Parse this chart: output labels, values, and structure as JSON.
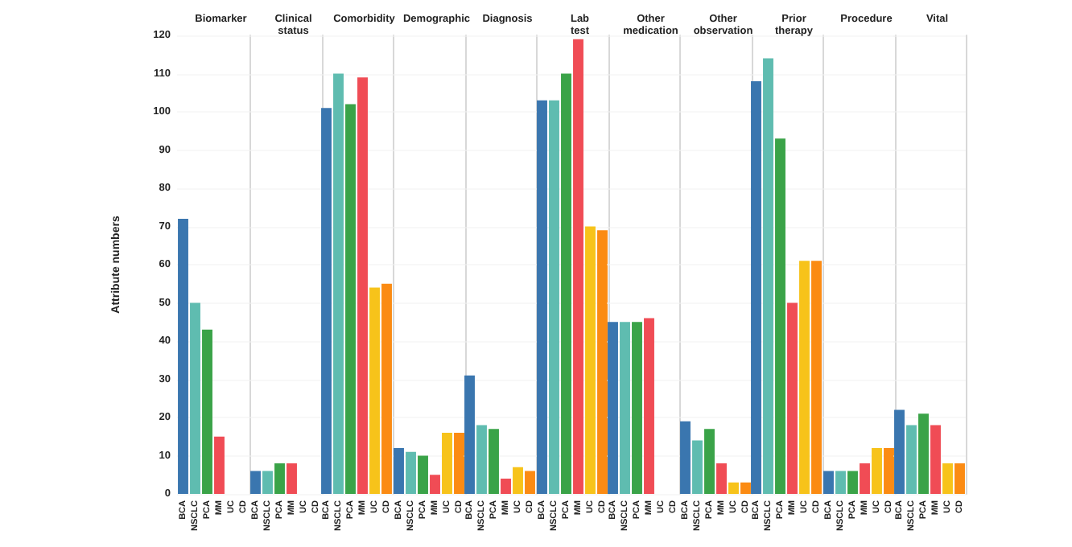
{
  "chart_data": [
    {
      "type": "bar",
      "title": "Biomarker",
      "ylabel": "Attribute numbers",
      "categories": [
        "BCA",
        "NSCLC",
        "PCA",
        "MM",
        "UC",
        "CD"
      ],
      "values": [
        72,
        50,
        43,
        15,
        0,
        0
      ],
      "colors": [
        "#3a76af",
        "#5fbcb0",
        "#3aa348",
        "#f04c55",
        "#f7c31a",
        "#fb8b13"
      ],
      "ylim": [
        0,
        120
      ],
      "yticks": [
        0,
        10,
        20,
        30,
        40,
        50,
        60,
        70,
        80,
        90,
        100,
        110,
        120
      ],
      "grid": "y"
    },
    {
      "type": "bar",
      "title": "Clinical status",
      "categories": [
        "BCA",
        "NSCLC",
        "PCA",
        "MM",
        "UC",
        "CD"
      ],
      "values": [
        6,
        6,
        8,
        8,
        0,
        0
      ],
      "colors": [
        "#3a76af",
        "#5fbcb0",
        "#3aa348",
        "#f04c55",
        "#f7c31a",
        "#fb8b13"
      ],
      "ylim": [
        0,
        120
      ],
      "yticks": [
        0,
        10,
        20,
        30,
        40,
        50,
        60,
        70,
        80,
        90,
        100,
        110,
        120
      ],
      "grid": "y",
      "tick_labels": "x"
    },
    {
      "type": "bar",
      "title": "Comorbidity",
      "categories": [
        "BCA",
        "NSCLC",
        "PCA",
        "MM",
        "UC",
        "CD"
      ],
      "values": [
        101,
        110,
        102,
        109,
        54,
        55
      ],
      "colors": [
        "#3a76af",
        "#5fbcb0",
        "#3aa348",
        "#f04c55",
        "#f7c31a",
        "#fb8b13"
      ],
      "ylim": [
        0,
        120
      ],
      "yticks": [
        0,
        10,
        20,
        30,
        40,
        50,
        60,
        70,
        80,
        90,
        100,
        110,
        120
      ],
      "grid": "y",
      "tick_labels": "x"
    },
    {
      "type": "bar",
      "title": "Demographic",
      "categories": [
        "BCA",
        "NSCLC",
        "PCA",
        "MM",
        "UC",
        "CD"
      ],
      "values": [
        12,
        11,
        10,
        5,
        16,
        16
      ],
      "colors": [
        "#3a76af",
        "#5fbcb0",
        "#3aa348",
        "#f04c55",
        "#f7c31a",
        "#fb8b13"
      ],
      "ylim": [
        0,
        120
      ],
      "yticks": [
        0,
        10,
        20,
        30,
        40,
        50,
        60,
        70,
        80,
        90,
        100,
        110,
        120
      ],
      "grid": "y",
      "tick_labels": "x"
    },
    {
      "type": "bar",
      "title": "Diagnosis",
      "categories": [
        "BCA",
        "NSCLC",
        "PCA",
        "MM",
        "UC",
        "CD"
      ],
      "values": [
        31,
        18,
        17,
        4,
        7,
        6
      ],
      "colors": [
        "#3a76af",
        "#5fbcb0",
        "#3aa348",
        "#f04c55",
        "#f7c31a",
        "#fb8b13"
      ],
      "ylim": [
        0,
        120
      ],
      "yticks": [
        0,
        10,
        20,
        30,
        40,
        50,
        60,
        70,
        80,
        90,
        100,
        110,
        120
      ],
      "grid": "y",
      "tick_labels": "x"
    },
    {
      "type": "bar",
      "title": "Lab test",
      "categories": [
        "BCA",
        "NSCLC",
        "PCA",
        "MM",
        "UC",
        "CD"
      ],
      "values": [
        103,
        103,
        110,
        119,
        70,
        69
      ],
      "colors": [
        "#3a76af",
        "#5fbcb0",
        "#3aa348",
        "#f04c55",
        "#f7c31a",
        "#fb8b13"
      ],
      "ylim": [
        0,
        120
      ],
      "yticks": [
        0,
        10,
        20,
        30,
        40,
        50,
        60,
        70,
        80,
        90,
        100,
        110,
        120
      ],
      "grid": "y",
      "tick_labels": "x"
    },
    {
      "type": "bar",
      "title": "Other medication",
      "categories": [
        "BCA",
        "NSCLC",
        "PCA",
        "MM",
        "UC",
        "CD"
      ],
      "values": [
        45,
        45,
        45,
        46,
        0,
        0
      ],
      "colors": [
        "#3a76af",
        "#5fbcb0",
        "#3aa348",
        "#f04c55",
        "#f7c31a",
        "#fb8b13"
      ],
      "ylim": [
        0,
        120
      ],
      "yticks": [
        0,
        10,
        20,
        30,
        40,
        50,
        60,
        70,
        80,
        90,
        100,
        110,
        120
      ],
      "grid": "y",
      "tick_labels": "x"
    },
    {
      "type": "bar",
      "title": "Other observation",
      "categories": [
        "BCA",
        "NSCLC",
        "PCA",
        "MM",
        "UC",
        "CD"
      ],
      "values": [
        19,
        14,
        17,
        8,
        3,
        3
      ],
      "colors": [
        "#3a76af",
        "#5fbcb0",
        "#3aa348",
        "#f04c55",
        "#f7c31a",
        "#fb8b13"
      ],
      "ylim": [
        0,
        120
      ],
      "yticks": [
        0,
        10,
        20,
        30,
        40,
        50,
        60,
        70,
        80,
        90,
        100,
        110,
        120
      ],
      "grid": "y",
      "tick_labels": "x"
    },
    {
      "type": "bar",
      "title": "Prior therapy",
      "categories": [
        "BCA",
        "NSCLC",
        "PCA",
        "MM",
        "UC",
        "CD"
      ],
      "values": [
        108,
        114,
        93,
        50,
        61,
        61
      ],
      "colors": [
        "#3a76af",
        "#5fbcb0",
        "#3aa348",
        "#f04c55",
        "#f7c31a",
        "#fb8b13"
      ],
      "ylim": [
        0,
        120
      ],
      "yticks": [
        0,
        10,
        20,
        30,
        40,
        50,
        60,
        70,
        80,
        90,
        100,
        110,
        120
      ],
      "grid": "y",
      "tick_labels": "x"
    },
    {
      "type": "bar",
      "title": "Procedure",
      "categories": [
        "BCA",
        "NSCLC",
        "PCA",
        "MM",
        "UC",
        "CD"
      ],
      "values": [
        6,
        6,
        6,
        8,
        12,
        12
      ],
      "colors": [
        "#3a76af",
        "#5fbcb0",
        "#3aa348",
        "#f04c55",
        "#f7c31a",
        "#fb8b13"
      ],
      "ylim": [
        0,
        120
      ],
      "yticks": [
        0,
        10,
        20,
        30,
        40,
        50,
        60,
        70,
        80,
        90,
        100,
        110,
        120
      ],
      "grid": "y",
      "tick_labels": "x"
    },
    {
      "type": "bar",
      "title": "Vital",
      "categories": [
        "BCA",
        "NSCLC",
        "PCA",
        "MM",
        "UC",
        "CD"
      ],
      "values": [
        22,
        18,
        21,
        18,
        8,
        8
      ],
      "colors": [
        "#3a76af",
        "#5fbcb0",
        "#3aa348",
        "#f04c55",
        "#f7c31a",
        "#fb8b13"
      ],
      "ylim": [
        0,
        120
      ],
      "yticks": [
        0,
        10,
        20,
        30,
        40,
        50,
        60,
        70,
        80,
        90,
        100,
        110,
        120
      ],
      "grid": "y",
      "tick_labels": "x"
    }
  ]
}
